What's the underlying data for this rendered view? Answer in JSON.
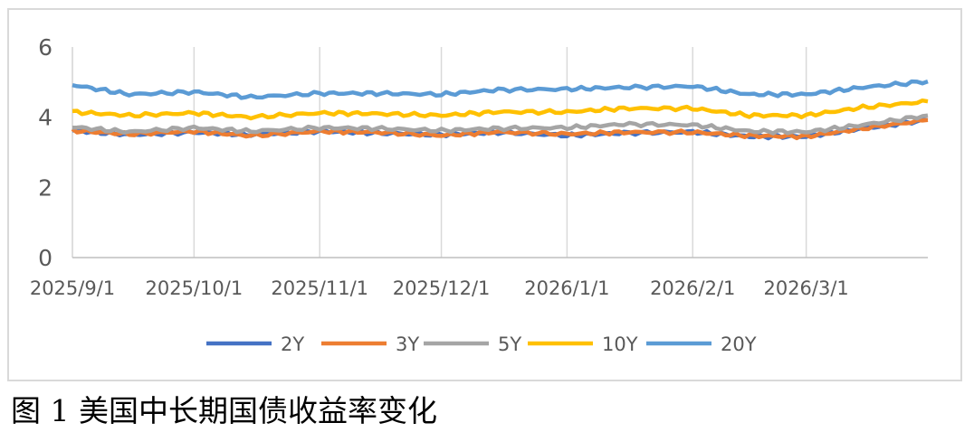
{
  "caption": "图 1 美国中长期国债收益率变化",
  "chart_data": {
    "type": "line",
    "x_start": "2025/9/1",
    "x_end": "2026/3/31",
    "x_ticks": [
      "2025/9/1",
      "2025/10/1",
      "2025/11/1",
      "2025/12/1",
      "2026/1/1",
      "2026/2/1",
      "2026/3/1"
    ],
    "y_ticks": [
      0,
      2,
      4,
      6
    ],
    "ylim": [
      0,
      6
    ],
    "grid": "vertical",
    "legend_position": "bottom",
    "series": [
      {
        "name": "2Y",
        "color": "#4472c4",
        "x": [
          "2025/9/1",
          "2025/9/15",
          "2025/10/1",
          "2025/10/15",
          "2025/11/1",
          "2025/11/15",
          "2025/12/1",
          "2025/12/15",
          "2026/1/1",
          "2026/1/15",
          "2026/2/1",
          "2026/2/15",
          "2026/3/1",
          "2026/3/15",
          "2026/3/31"
        ],
        "values": [
          3.62,
          3.5,
          3.57,
          3.5,
          3.6,
          3.55,
          3.5,
          3.57,
          3.48,
          3.55,
          3.58,
          3.45,
          3.45,
          3.68,
          3.92
        ]
      },
      {
        "name": "3Y",
        "color": "#ed7d31",
        "x": [
          "2025/9/1",
          "2025/9/15",
          "2025/10/1",
          "2025/10/15",
          "2025/11/1",
          "2025/11/15",
          "2025/12/1",
          "2025/12/15",
          "2026/1/1",
          "2026/1/15",
          "2026/2/1",
          "2026/2/15",
          "2026/3/1",
          "2026/3/15",
          "2026/3/31"
        ],
        "values": [
          3.62,
          3.52,
          3.6,
          3.47,
          3.6,
          3.57,
          3.48,
          3.58,
          3.52,
          3.57,
          3.57,
          3.47,
          3.45,
          3.68,
          3.92
        ]
      },
      {
        "name": "5Y",
        "color": "#a5a5a5",
        "x": [
          "2025/9/1",
          "2025/9/15",
          "2025/10/1",
          "2025/10/15",
          "2025/11/1",
          "2025/11/15",
          "2025/12/1",
          "2025/12/15",
          "2026/1/1",
          "2026/1/15",
          "2026/2/1",
          "2026/2/15",
          "2026/3/1",
          "2026/3/15",
          "2026/3/31"
        ],
        "values": [
          3.72,
          3.58,
          3.7,
          3.6,
          3.7,
          3.68,
          3.62,
          3.68,
          3.7,
          3.8,
          3.78,
          3.6,
          3.58,
          3.78,
          4.05
        ]
      },
      {
        "name": "10Y",
        "color": "#ffc000",
        "x": [
          "2025/9/1",
          "2025/9/15",
          "2025/10/1",
          "2025/10/15",
          "2025/11/1",
          "2025/11/15",
          "2025/12/1",
          "2025/12/15",
          "2026/1/1",
          "2026/1/15",
          "2026/2/1",
          "2026/2/15",
          "2026/3/1",
          "2026/3/15",
          "2026/3/31"
        ],
        "values": [
          4.15,
          4.05,
          4.12,
          4.0,
          4.12,
          4.1,
          4.05,
          4.15,
          4.15,
          4.25,
          4.25,
          4.05,
          4.05,
          4.28,
          4.45
        ]
      },
      {
        "name": "20Y",
        "color": "#5b9bd5",
        "x": [
          "2025/9/1",
          "2025/9/15",
          "2025/10/1",
          "2025/10/15",
          "2025/11/1",
          "2025/11/15",
          "2025/12/1",
          "2025/12/15",
          "2026/1/1",
          "2026/1/15",
          "2026/2/1",
          "2026/2/15",
          "2026/3/1",
          "2026/3/15",
          "2026/3/31"
        ],
        "values": [
          4.92,
          4.65,
          4.72,
          4.57,
          4.68,
          4.68,
          4.65,
          4.78,
          4.8,
          4.85,
          4.88,
          4.65,
          4.65,
          4.85,
          5.02
        ]
      }
    ]
  }
}
